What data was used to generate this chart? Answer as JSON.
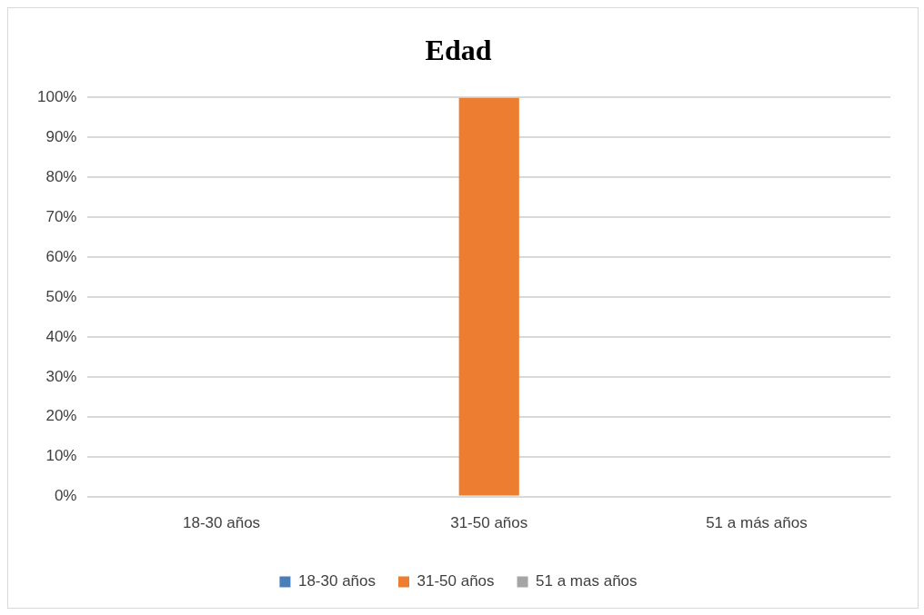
{
  "chart_data": {
    "type": "bar",
    "title": "Edad",
    "categories": [
      "18-30 años",
      "31-50 años",
      "51 a más años"
    ],
    "series": [
      {
        "name": "18-30 años",
        "color": "#4a7ebb",
        "values": [
          0,
          null,
          null
        ]
      },
      {
        "name": "31-50 años",
        "color": "#ed7d31",
        "values": [
          null,
          100,
          null
        ]
      },
      {
        "name": "51 a mas años",
        "color": "#a5a5a5",
        "values": [
          null,
          null,
          0
        ]
      }
    ],
    "ylim": [
      0,
      100
    ],
    "yticks": [
      {
        "value": 0,
        "label": "0%"
      },
      {
        "value": 10,
        "label": "10%"
      },
      {
        "value": 20,
        "label": "20%"
      },
      {
        "value": 30,
        "label": "30%"
      },
      {
        "value": 40,
        "label": "40%"
      },
      {
        "value": 50,
        "label": "50%"
      },
      {
        "value": 60,
        "label": "60%"
      },
      {
        "value": 70,
        "label": "70%"
      },
      {
        "value": 80,
        "label": "80%"
      },
      {
        "value": 90,
        "label": "90%"
      },
      {
        "value": 100,
        "label": "100%"
      }
    ],
    "grid": "y",
    "legend": "bottom"
  }
}
